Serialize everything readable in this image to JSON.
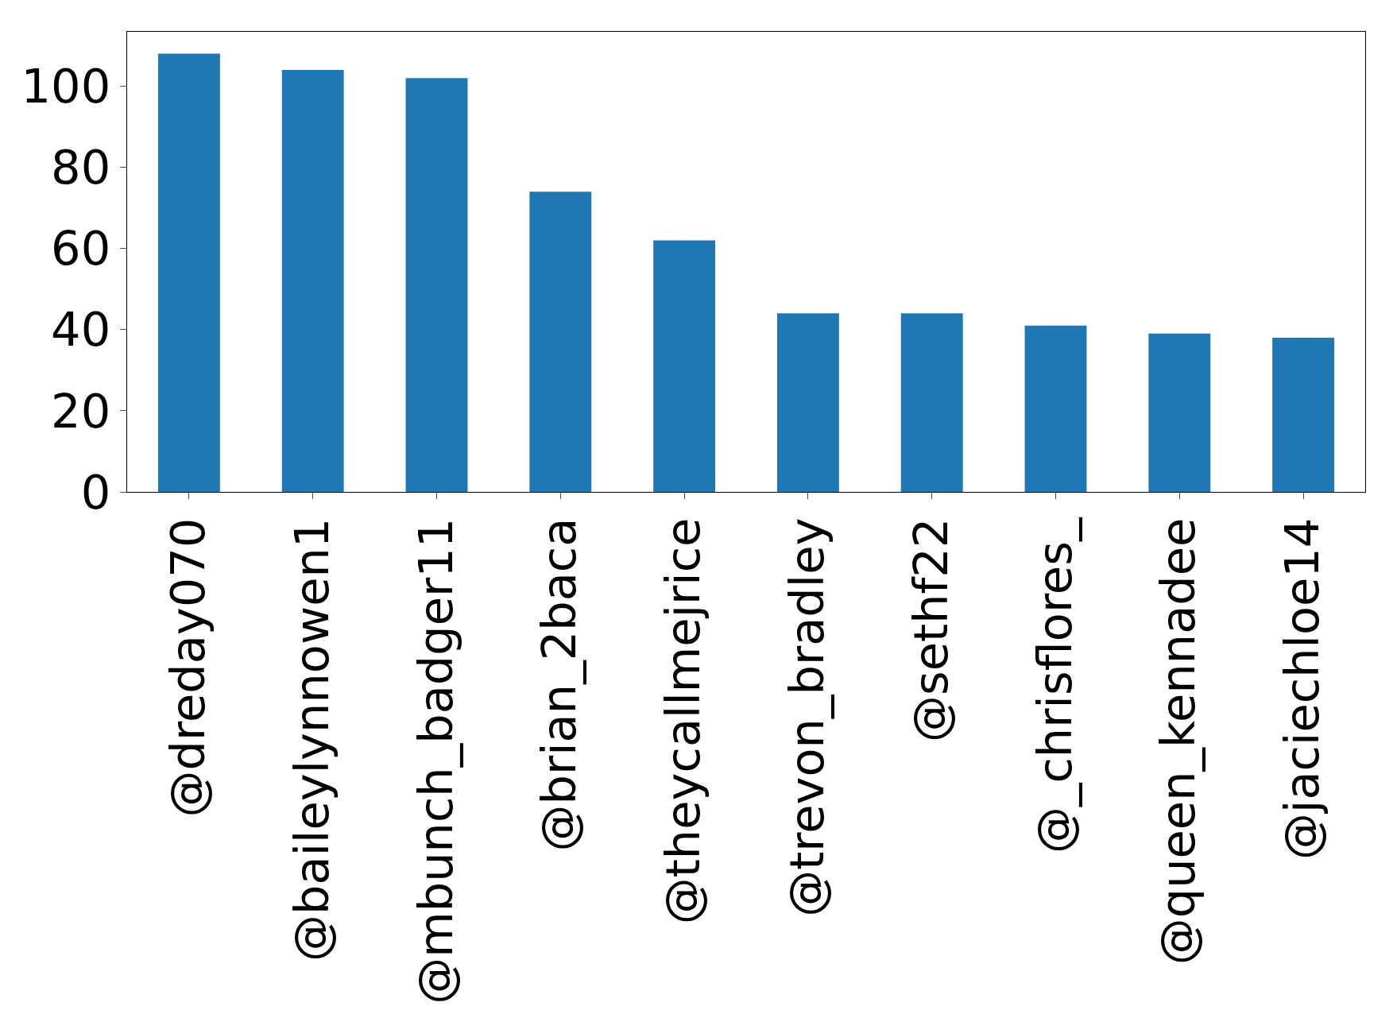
{
  "chart_data": {
    "type": "bar",
    "categories": [
      "@dreday070",
      "@baileylynnowen1",
      "@mbunch_badger11",
      "@brian_2baca",
      "@theycallmejrice",
      "@trevon_bradley",
      "@sethf22",
      "@_chrisflores_",
      "@queen_kennadee",
      "@jaciechloe14"
    ],
    "values": [
      108,
      104,
      102,
      74,
      62,
      44,
      44,
      41,
      39,
      38
    ],
    "color": "#1f77b4",
    "ylim": [
      0,
      113.4
    ],
    "yticks": [
      0,
      20,
      40,
      60,
      80,
      100
    ]
  }
}
